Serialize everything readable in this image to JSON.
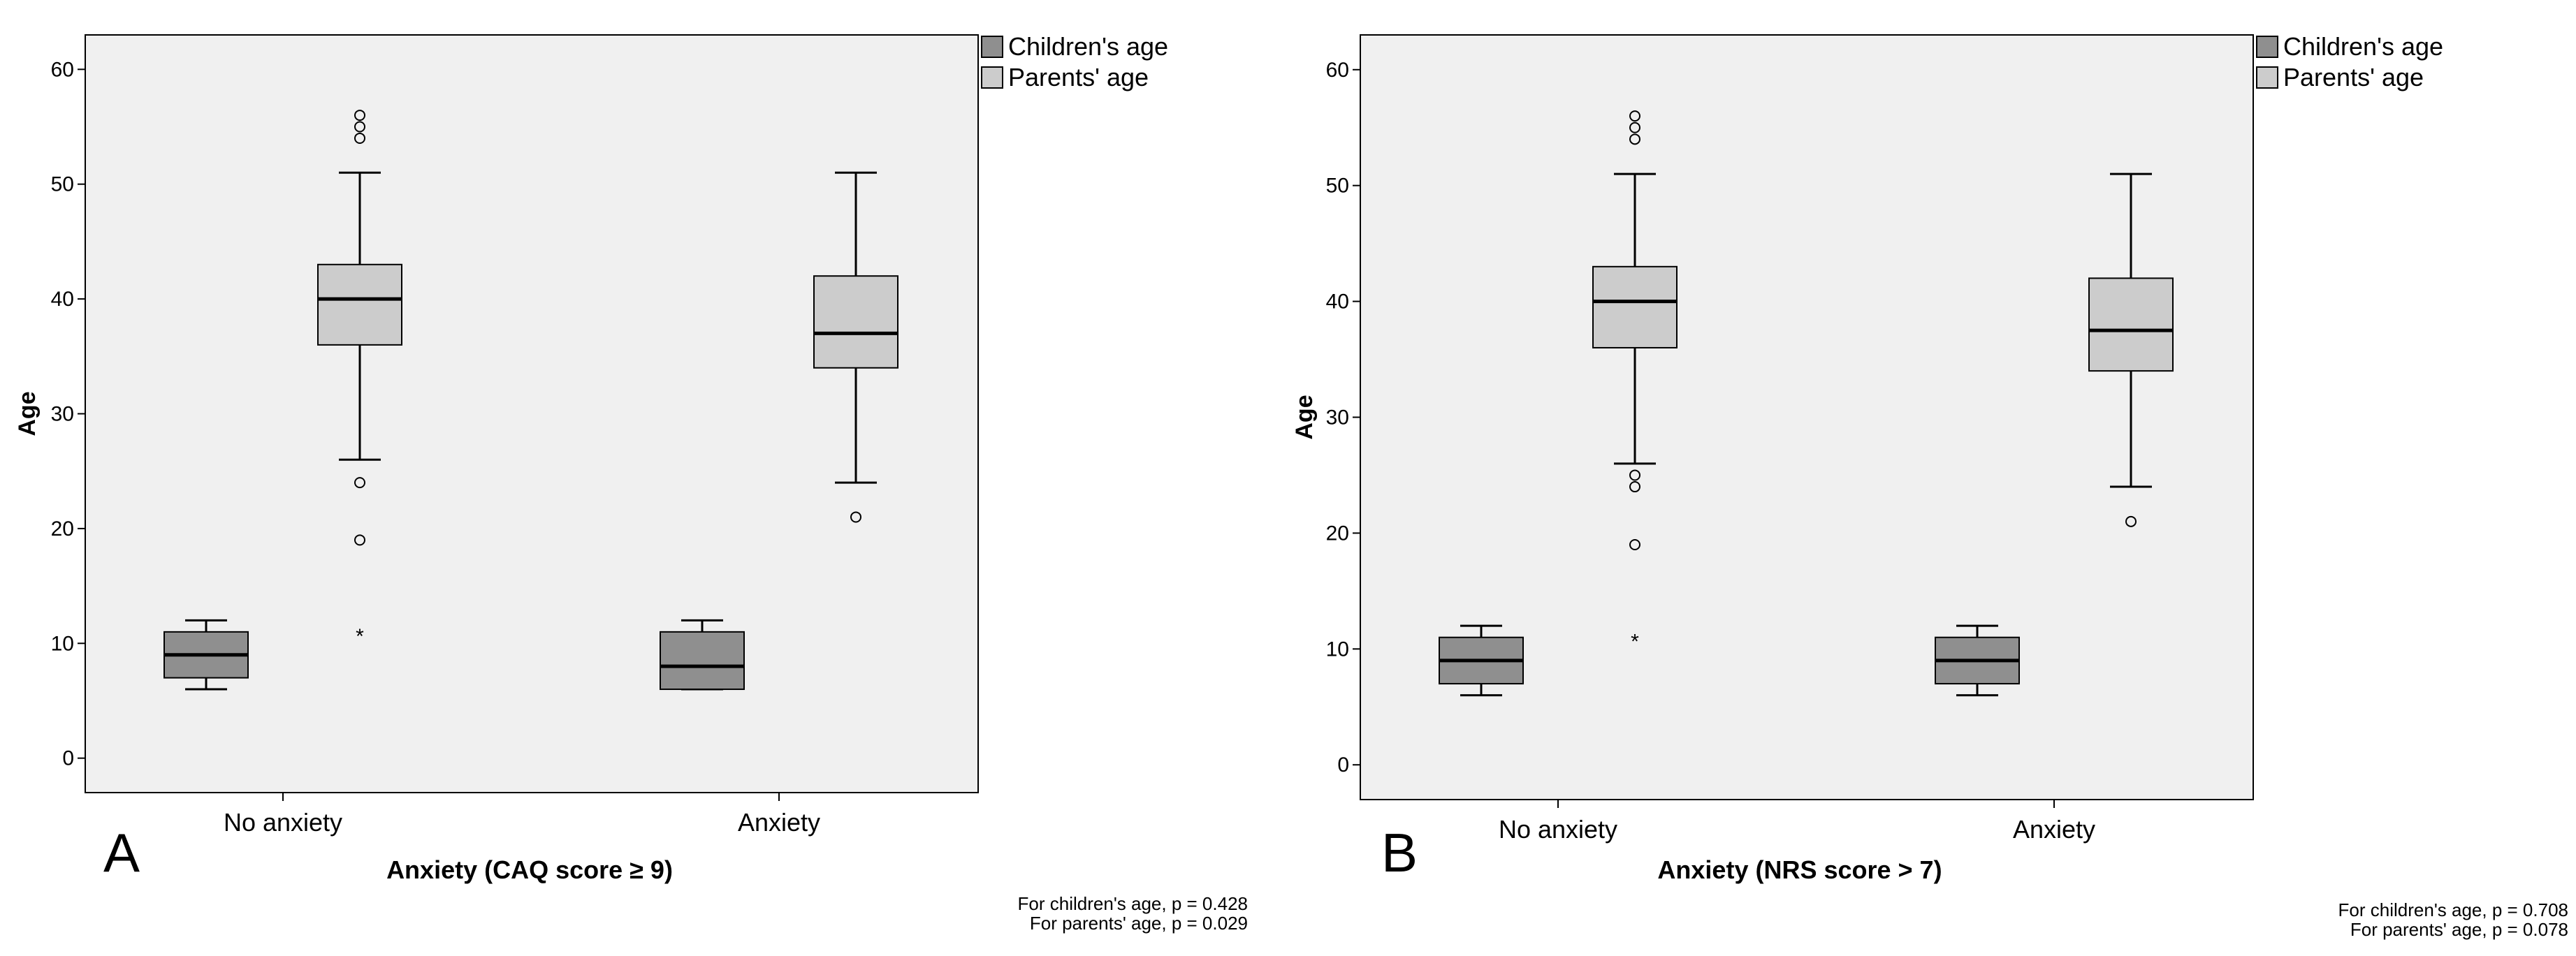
{
  "chart_data": [
    {
      "type": "boxplot",
      "panel_label": "A",
      "xlabel": "Anxiety (CAQ score ≥ 9)",
      "ylabel": "Age",
      "ylim": [
        -3,
        63
      ],
      "yticks": [
        0,
        10,
        20,
        30,
        40,
        50,
        60
      ],
      "categories": [
        "No anxiety",
        "Anxiety"
      ],
      "legend": [
        "Children's age",
        "Parents' age"
      ],
      "series": [
        {
          "name": "Children's age",
          "color": "#8f8f8f",
          "boxes": [
            {
              "category": "No anxiety",
              "min": 6,
              "q1": 7,
              "median": 9,
              "q3": 11,
              "max": 12,
              "outliers": [],
              "extremes": []
            },
            {
              "category": "Anxiety",
              "min": 6,
              "q1": 6,
              "median": 8,
              "q3": 11,
              "max": 12,
              "outliers": [],
              "extremes": []
            }
          ]
        },
        {
          "name": "Parents' age",
          "color": "#cccccc",
          "boxes": [
            {
              "category": "No anxiety",
              "min": 26,
              "q1": 36,
              "median": 40,
              "q3": 43,
              "max": 51,
              "outliers": [
                54,
                55,
                56,
                24,
                19
              ],
              "extremes": [
                11
              ]
            },
            {
              "category": "Anxiety",
              "min": 24,
              "q1": 34,
              "median": 37,
              "q3": 42,
              "max": 51,
              "outliers": [
                21
              ],
              "extremes": []
            }
          ]
        }
      ],
      "pvalue_notes": [
        "For children's age, p = 0.428",
        "For parents' age, p = 0.029"
      ]
    },
    {
      "type": "boxplot",
      "panel_label": "B",
      "xlabel": "Anxiety (NRS score > 7)",
      "ylabel": "Age",
      "ylim": [
        -3,
        63
      ],
      "yticks": [
        0,
        10,
        20,
        30,
        40,
        50,
        60
      ],
      "categories": [
        "No anxiety",
        "Anxiety"
      ],
      "legend": [
        "Children's age",
        "Parents' age"
      ],
      "series": [
        {
          "name": "Children's age",
          "color": "#8f8f8f",
          "boxes": [
            {
              "category": "No anxiety",
              "min": 6,
              "q1": 7,
              "median": 9,
              "q3": 11,
              "max": 12,
              "outliers": [],
              "extremes": []
            },
            {
              "category": "Anxiety",
              "min": 6,
              "q1": 7,
              "median": 9,
              "q3": 11,
              "max": 12,
              "outliers": [],
              "extremes": []
            }
          ]
        },
        {
          "name": "Parents' age",
          "color": "#cccccc",
          "boxes": [
            {
              "category": "No anxiety",
              "min": 26,
              "q1": 36,
              "median": 40,
              "q3": 43,
              "max": 51,
              "outliers": [
                54,
                55,
                56,
                25,
                24,
                19
              ],
              "extremes": [
                11
              ]
            },
            {
              "category": "Anxiety",
              "min": 24,
              "q1": 34,
              "median": 37.5,
              "q3": 42,
              "max": 51,
              "outliers": [
                21
              ],
              "extremes": []
            }
          ]
        }
      ],
      "pvalue_notes": [
        "For children's age, p = 0.708",
        "For parents' age, p = 0.078"
      ]
    }
  ]
}
